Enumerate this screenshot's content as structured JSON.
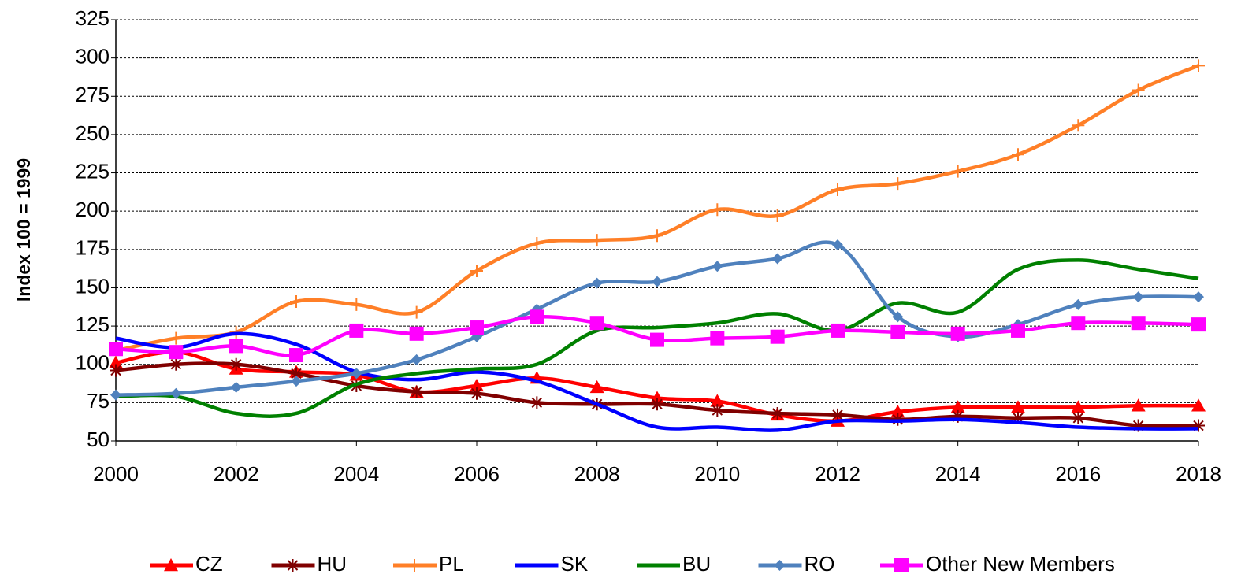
{
  "chart_data": {
    "type": "line",
    "y_label": "Index 100 = 1999",
    "x": [
      2000,
      2001,
      2002,
      2003,
      2004,
      2005,
      2006,
      2007,
      2008,
      2009,
      2010,
      2011,
      2012,
      2013,
      2014,
      2015,
      2016,
      2017,
      2018
    ],
    "xlim": [
      2000,
      2018
    ],
    "xticks": [
      2000,
      2002,
      2004,
      2006,
      2008,
      2010,
      2012,
      2014,
      2016,
      2018
    ],
    "ylim": [
      50,
      325
    ],
    "yticks": [
      50,
      75,
      100,
      125,
      150,
      175,
      200,
      225,
      250,
      275,
      300,
      325
    ],
    "grid": true,
    "smooth": true,
    "legend": "bottom",
    "series": [
      {
        "name": "CZ",
        "color": "#ff0000",
        "marker": "triangle",
        "values": [
          101,
          108,
          97,
          95,
          93,
          82,
          86,
          91,
          85,
          78,
          76,
          67,
          63,
          69,
          72,
          72,
          72,
          73,
          73
        ]
      },
      {
        "name": "HU",
        "color": "#800000",
        "marker": "star",
        "values": [
          96,
          100,
          100,
          94,
          86,
          82,
          81,
          75,
          74,
          74,
          70,
          68,
          67,
          64,
          66,
          65,
          65,
          60,
          60
        ]
      },
      {
        "name": "PL",
        "color": "#ff7f27",
        "marker": "plus",
        "values": [
          109,
          117,
          121,
          141,
          139,
          134,
          161,
          179,
          181,
          184,
          201,
          197,
          214,
          218,
          226,
          237,
          256,
          279,
          295
        ]
      },
      {
        "name": "SK",
        "color": "#0000ff",
        "values": [
          117,
          111,
          120,
          113,
          95,
          90,
          95,
          89,
          74,
          59,
          59,
          57,
          63,
          63,
          64,
          62,
          59,
          58,
          58
        ]
      },
      {
        "name": "BU",
        "color": "#008000",
        "values": [
          79,
          79,
          68,
          68,
          87,
          94,
          97,
          100,
          122,
          124,
          127,
          133,
          122,
          140,
          134,
          162,
          168,
          162,
          156
        ]
      },
      {
        "name": "RO",
        "color": "#4f81bd",
        "marker": "diamond",
        "values": [
          80,
          81,
          85,
          89,
          94,
          103,
          118,
          136,
          153,
          154,
          164,
          169,
          178,
          131,
          118,
          126,
          139,
          144,
          144
        ]
      },
      {
        "name": "Other New Members",
        "color": "#ff00ff",
        "marker": "square",
        "values": [
          110,
          108,
          112,
          106,
          122,
          120,
          124,
          131,
          127,
          116,
          117,
          118,
          122,
          121,
          120,
          122,
          127,
          127,
          126
        ]
      }
    ]
  }
}
